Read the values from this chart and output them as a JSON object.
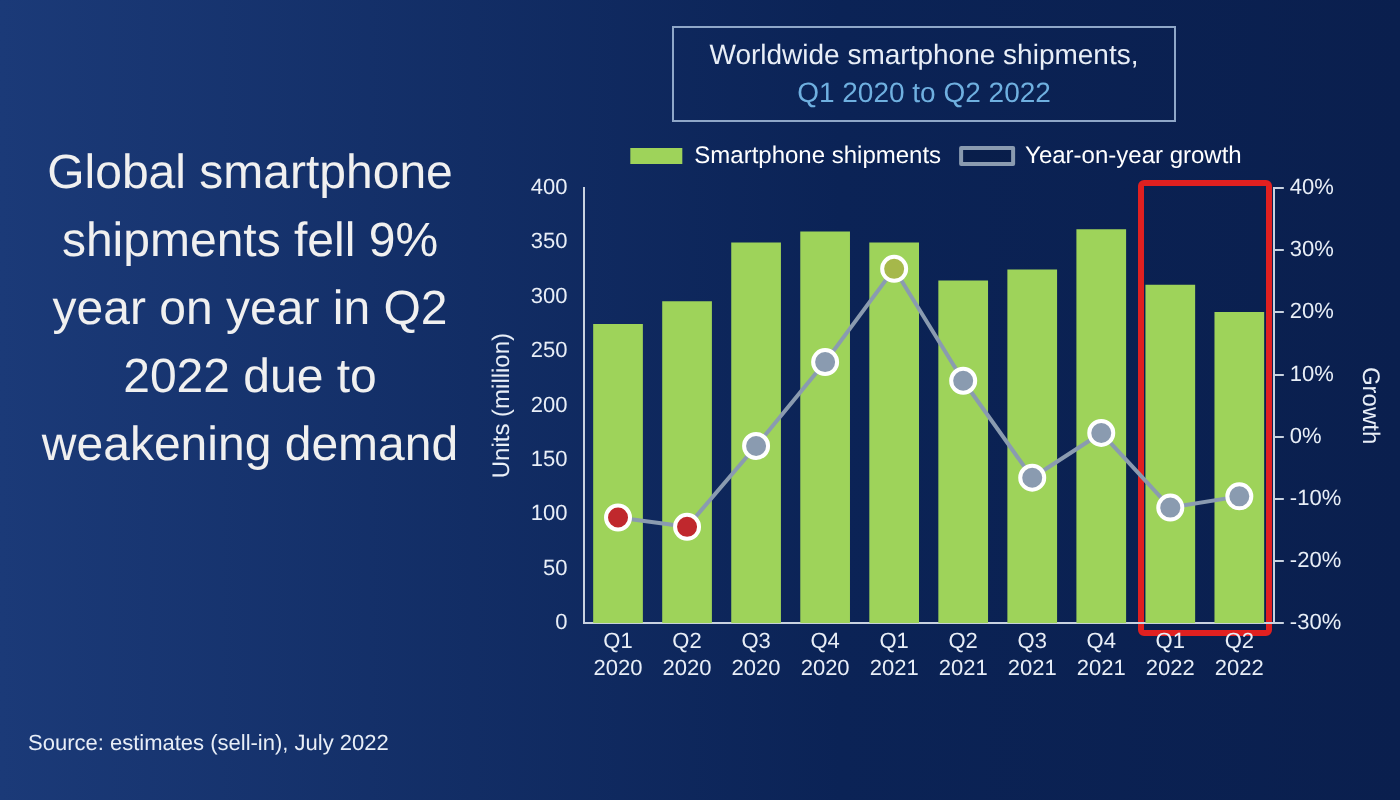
{
  "chart_data": {
    "type": "bar",
    "title": "Worldwide smartphone shipments,",
    "subtitle": "Q1 2020 to Q2 2022",
    "ylabel": "Units (million)",
    "y2label": "Growth",
    "categories": [
      "Q1 2020",
      "Q2 2020",
      "Q3 2020",
      "Q4 2020",
      "Q1 2021",
      "Q2 2021",
      "Q3 2021",
      "Q4 2021",
      "Q1 2022",
      "Q2 2022"
    ],
    "series": [
      {
        "name": "Smartphone shipments",
        "color": "#9ed35a",
        "values": [
          275,
          296,
          350,
          360,
          350,
          315,
          325,
          362,
          311,
          286
        ]
      },
      {
        "name": "Year-on-year growth",
        "type": "line",
        "axis": "y2",
        "color": "#8a9bb0",
        "colors": [
          "#c0282d",
          "#c0282d",
          "#8a9bb0",
          "#8a9bb0",
          "#a6b84a",
          "#8a9bb0",
          "#8a9bb0",
          "#8a9bb0",
          "#8a9bb0",
          "#8a9bb0"
        ],
        "values": [
          -13,
          -14.5,
          -1.5,
          12,
          27,
          9,
          -6.6,
          0.6,
          -11.4,
          -9.6
        ]
      }
    ],
    "ylim": [
      0,
      400
    ],
    "yticks": [
      0,
      50,
      100,
      150,
      200,
      250,
      300,
      350,
      400
    ],
    "y2lim": [
      -30,
      40
    ],
    "y2ticks": [
      {
        "value": -30,
        "label": "-30%"
      },
      {
        "value": -20,
        "label": "-20%"
      },
      {
        "value": -10,
        "label": "-10%"
      },
      {
        "value": 0,
        "label": "0%"
      },
      {
        "value": 10,
        "label": "10%"
      },
      {
        "value": 20,
        "label": "20%"
      },
      {
        "value": 30,
        "label": "30%"
      },
      {
        "value": 40,
        "label": "40%"
      }
    ],
    "marker": "circle",
    "legend": "top",
    "annotations": [
      "Global smartphone shipments fell 9% year on year in Q2 2022 due to weakening demand",
      "Source: estimates (sell-in), July 2022"
    ]
  }
}
